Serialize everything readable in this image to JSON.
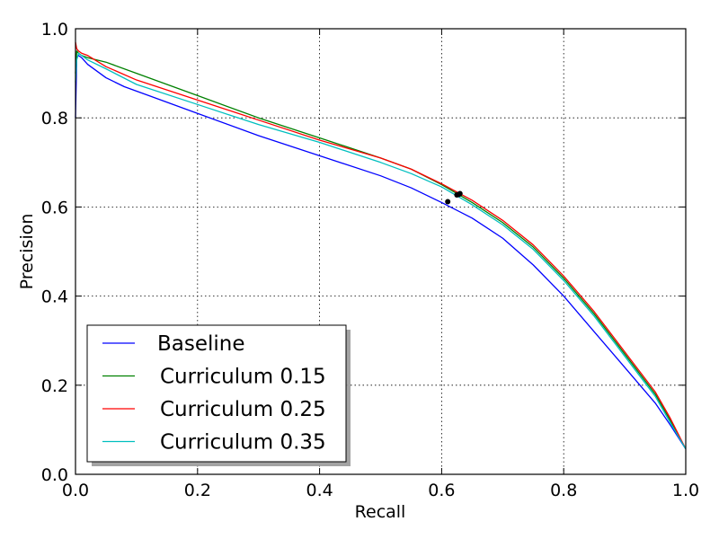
{
  "chart_data": {
    "type": "line",
    "title": "",
    "xlabel": "Recall",
    "ylabel": "Precision",
    "xlim": [
      0.0,
      1.0
    ],
    "ylim": [
      0.0,
      1.0
    ],
    "xticks": [
      "0.0",
      "0.2",
      "0.4",
      "0.6",
      "0.8",
      "1.0"
    ],
    "yticks": [
      "0.0",
      "0.2",
      "0.4",
      "0.6",
      "0.8",
      "1.0"
    ],
    "grid": true,
    "legend_position": "lower-left",
    "series": [
      {
        "name": "Baseline",
        "color": "#0000ff",
        "x": [
          0.0,
          0.002,
          0.005,
          0.01,
          0.02,
          0.05,
          0.08,
          0.12,
          0.2,
          0.3,
          0.4,
          0.5,
          0.55,
          0.6,
          0.65,
          0.7,
          0.75,
          0.8,
          0.85,
          0.9,
          0.95,
          0.975,
          1.0
        ],
        "y": [
          0.8,
          0.935,
          0.94,
          0.935,
          0.92,
          0.89,
          0.87,
          0.85,
          0.81,
          0.76,
          0.715,
          0.67,
          0.643,
          0.61,
          0.575,
          0.53,
          0.47,
          0.4,
          0.32,
          0.24,
          0.16,
          0.11,
          0.057
        ],
        "marker": {
          "x": 0.61,
          "y": 0.612
        }
      },
      {
        "name": "Curriculum 0.15",
        "color": "#008000",
        "x": [
          0.0,
          0.002,
          0.005,
          0.01,
          0.02,
          0.05,
          0.1,
          0.2,
          0.3,
          0.4,
          0.5,
          0.55,
          0.6,
          0.65,
          0.7,
          0.75,
          0.8,
          0.85,
          0.9,
          0.95,
          0.975,
          1.0
        ],
        "y": [
          0.9,
          0.95,
          0.945,
          0.94,
          0.935,
          0.925,
          0.9,
          0.85,
          0.8,
          0.755,
          0.71,
          0.685,
          0.65,
          0.61,
          0.565,
          0.51,
          0.44,
          0.36,
          0.27,
          0.18,
          0.12,
          0.057
        ],
        "marker": {
          "x": 0.628,
          "y": 0.628
        }
      },
      {
        "name": "Curriculum 0.25",
        "color": "#ff0000",
        "x": [
          0.0,
          0.002,
          0.005,
          0.01,
          0.02,
          0.05,
          0.1,
          0.2,
          0.3,
          0.4,
          0.5,
          0.55,
          0.6,
          0.65,
          0.7,
          0.75,
          0.8,
          0.85,
          0.9,
          0.95,
          0.975,
          1.0
        ],
        "y": [
          0.97,
          0.955,
          0.95,
          0.945,
          0.94,
          0.915,
          0.885,
          0.84,
          0.795,
          0.75,
          0.71,
          0.685,
          0.652,
          0.615,
          0.57,
          0.515,
          0.445,
          0.365,
          0.275,
          0.185,
          0.125,
          0.057
        ],
        "marker": {
          "x": 0.63,
          "y": 0.63
        }
      },
      {
        "name": "Curriculum 0.35",
        "color": "#00bfbf",
        "x": [
          0.0,
          0.002,
          0.005,
          0.01,
          0.02,
          0.05,
          0.1,
          0.2,
          0.3,
          0.4,
          0.5,
          0.55,
          0.6,
          0.65,
          0.7,
          0.75,
          0.8,
          0.85,
          0.9,
          0.95,
          0.975,
          1.0
        ],
        "y": [
          0.88,
          0.93,
          0.945,
          0.94,
          0.93,
          0.91,
          0.875,
          0.83,
          0.785,
          0.745,
          0.7,
          0.675,
          0.645,
          0.605,
          0.56,
          0.505,
          0.435,
          0.355,
          0.265,
          0.175,
          0.115,
          0.057
        ],
        "marker": {
          "x": 0.625,
          "y": 0.627
        }
      }
    ]
  }
}
